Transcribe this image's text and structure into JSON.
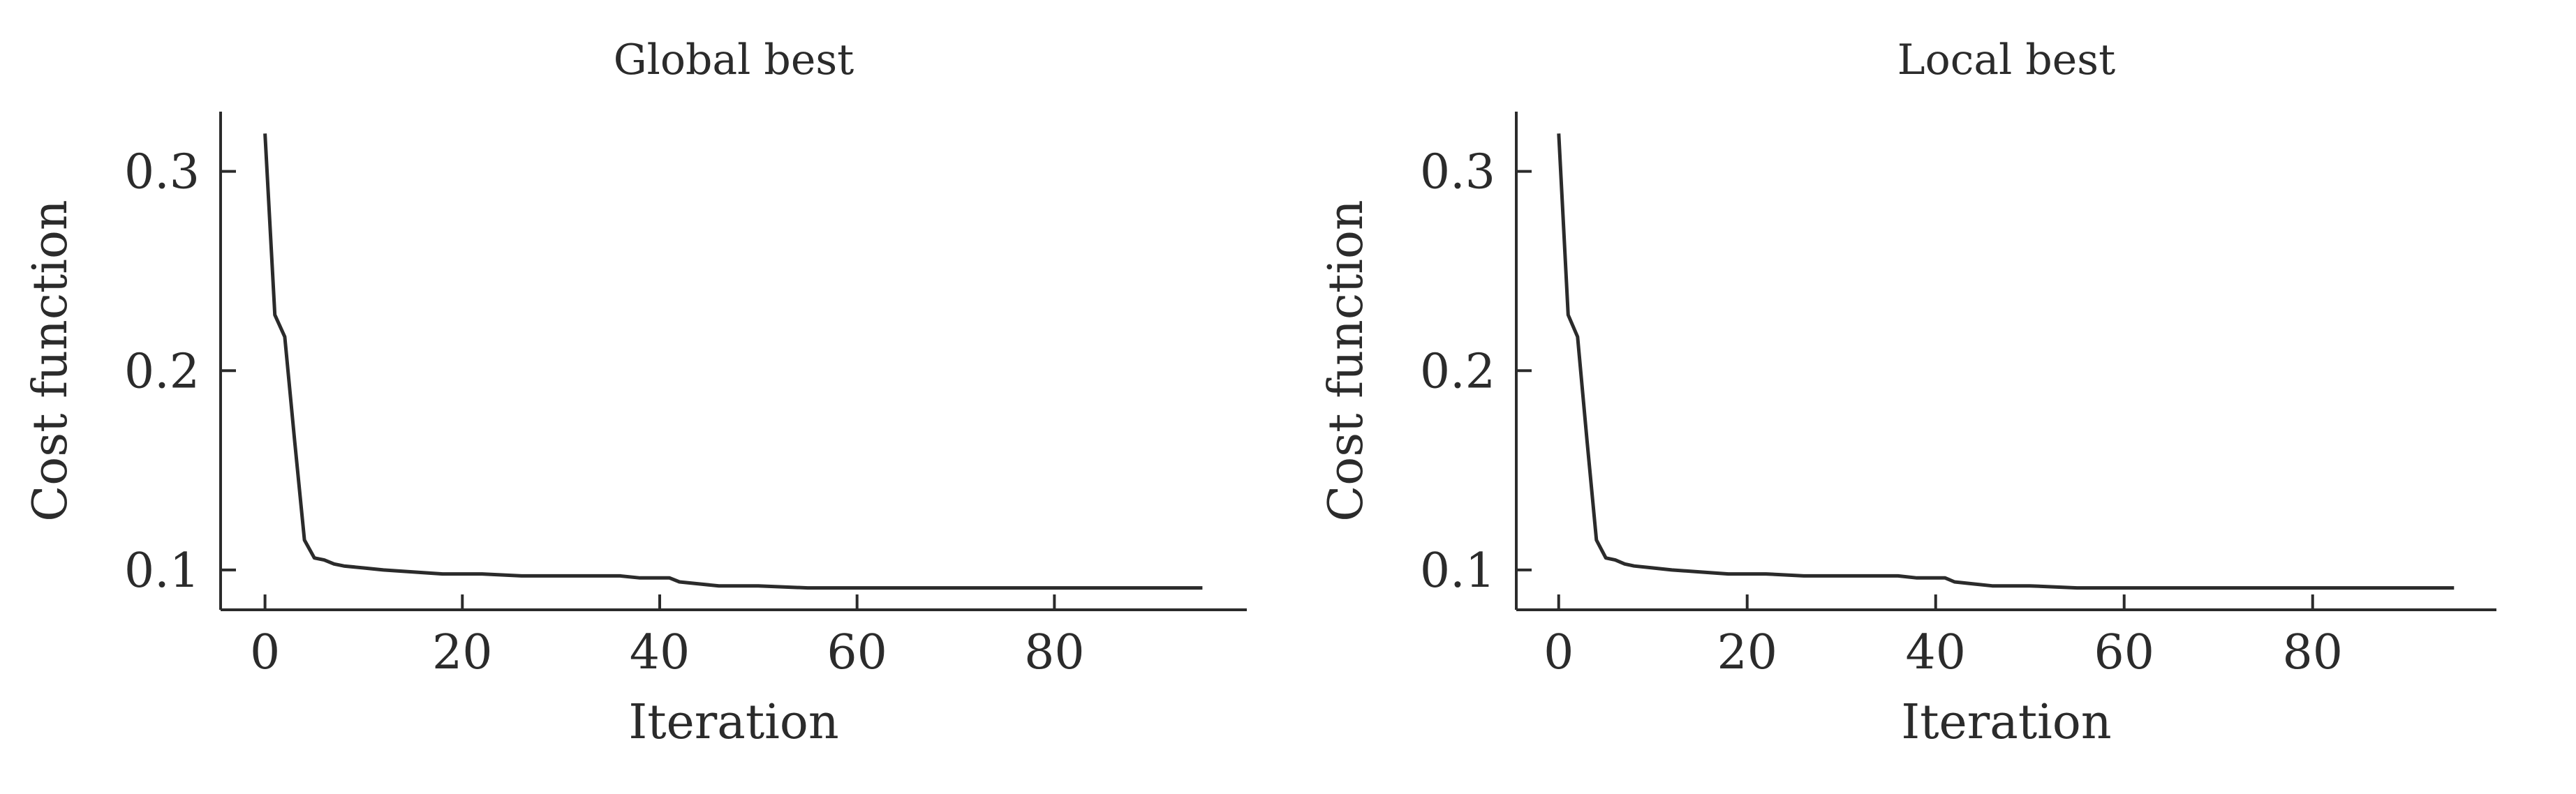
{
  "chart_data": [
    {
      "type": "line",
      "title": "Global best",
      "xlabel": "Iteration",
      "ylabel": "Cost function",
      "xlim": [
        -4.5,
        99.5
      ],
      "ylim": [
        0.08,
        0.33
      ],
      "xticks": [
        0,
        20,
        40,
        60,
        80
      ],
      "yticks": [
        0.1,
        0.2,
        0.3
      ],
      "xtick_labels": [
        "0",
        "20",
        "40",
        "60",
        "80"
      ],
      "ytick_labels": [
        "0.1",
        "0.2",
        "0.3"
      ],
      "grid": false,
      "series": [
        {
          "color": "#2b2b2b",
          "x": [
            0,
            1,
            2,
            3,
            4,
            5,
            6,
            7,
            8,
            10,
            12,
            15,
            18,
            22,
            26,
            30,
            36,
            38,
            41,
            42,
            44,
            46,
            50,
            55,
            60,
            70,
            80,
            95
          ],
          "y": [
            0.319,
            0.228,
            0.217,
            0.165,
            0.115,
            0.106,
            0.105,
            0.103,
            0.102,
            0.101,
            0.1,
            0.099,
            0.098,
            0.098,
            0.097,
            0.097,
            0.097,
            0.096,
            0.096,
            0.094,
            0.093,
            0.092,
            0.092,
            0.091,
            0.091,
            0.091,
            0.091,
            0.091
          ]
        }
      ]
    },
    {
      "type": "line",
      "title": "Local best",
      "xlabel": "Iteration",
      "ylabel": "Cost function",
      "xlim": [
        -4.5,
        99.5
      ],
      "ylim": [
        0.08,
        0.33
      ],
      "xticks": [
        0,
        20,
        40,
        60,
        80
      ],
      "yticks": [
        0.1,
        0.2,
        0.3
      ],
      "xtick_labels": [
        "0",
        "20",
        "40",
        "60",
        "80"
      ],
      "ytick_labels": [
        "0.1",
        "0.2",
        "0.3"
      ],
      "grid": false,
      "series": [
        {
          "color": "#2b2b2b",
          "x": [
            0,
            1,
            2,
            3,
            4,
            5,
            6,
            7,
            8,
            10,
            12,
            15,
            18,
            22,
            26,
            30,
            36,
            38,
            41,
            42,
            44,
            46,
            50,
            55,
            60,
            70,
            80,
            95
          ],
          "y": [
            0.319,
            0.228,
            0.217,
            0.165,
            0.115,
            0.106,
            0.105,
            0.103,
            0.102,
            0.101,
            0.1,
            0.099,
            0.098,
            0.098,
            0.097,
            0.097,
            0.097,
            0.096,
            0.096,
            0.094,
            0.093,
            0.092,
            0.092,
            0.091,
            0.091,
            0.091,
            0.091,
            0.091
          ]
        }
      ]
    }
  ]
}
